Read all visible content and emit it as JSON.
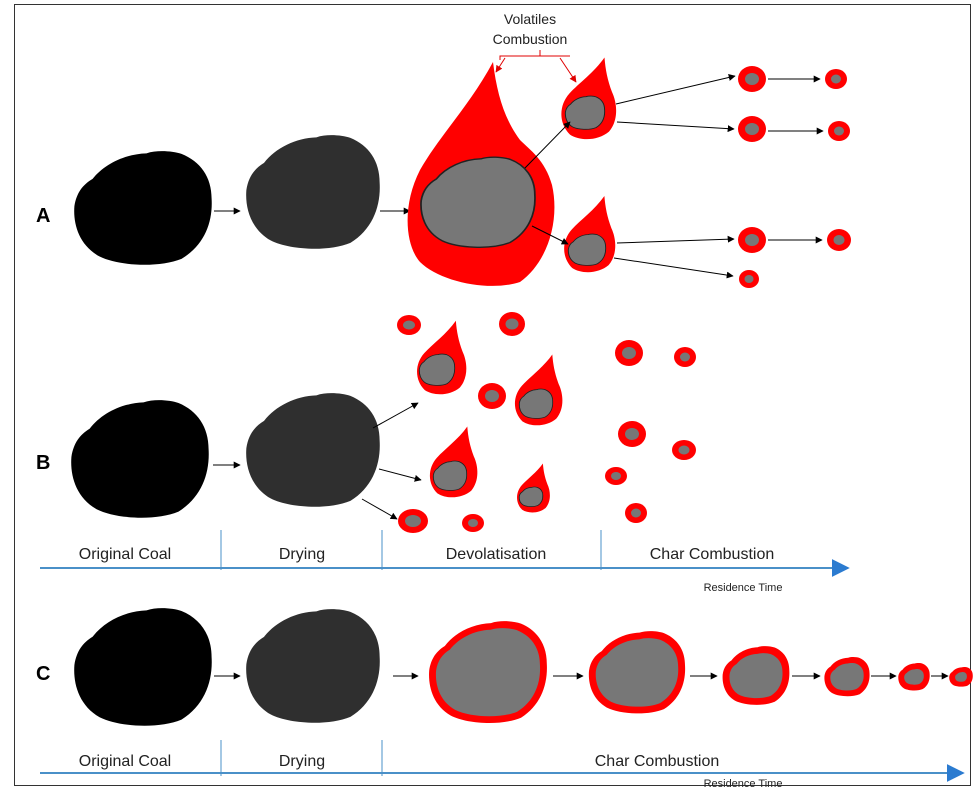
{
  "annotation": {
    "line1": "Volatiles",
    "line2": "Combustion"
  },
  "rows": {
    "a": {
      "label": "A"
    },
    "b": {
      "label": "B"
    },
    "c": {
      "label": "C"
    }
  },
  "timeline_b": {
    "stages": [
      "Original Coal",
      "Drying",
      "Devolatisation",
      "Char Combustion"
    ],
    "axis_label": "Residence Time"
  },
  "timeline_c": {
    "stages": [
      "Original Coal",
      "Drying",
      "Char Combustion"
    ],
    "axis_label": "Residence Time"
  },
  "colors": {
    "coal": "#000000",
    "dried": "#2f2f2f",
    "char": "#777777",
    "flame": "#ff0000",
    "axis": "#4a90c8"
  }
}
